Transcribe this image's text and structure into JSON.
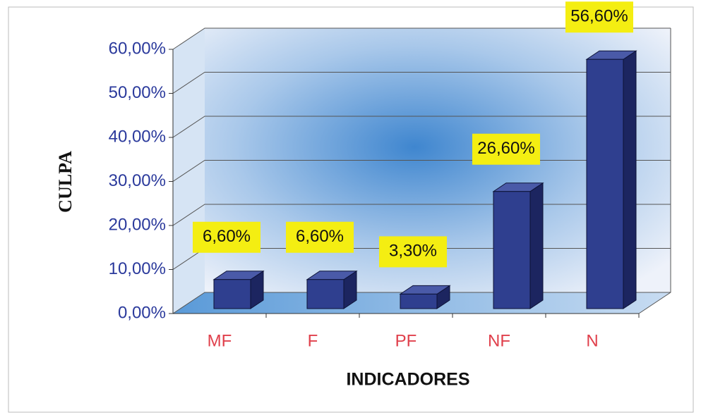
{
  "chart_data": {
    "type": "bar3d",
    "xlabel": "INDICADORES",
    "ylabel": "CULPA",
    "categories": [
      "MF",
      "F",
      "PF",
      "NF",
      "N"
    ],
    "values": [
      6.6,
      6.6,
      3.3,
      26.6,
      56.6
    ],
    "value_labels": [
      "6,60%",
      "6,60%",
      "3,30%",
      "26,60%",
      "56,60%"
    ],
    "color": "#2f3f8f",
    "ylim": [
      0,
      60
    ],
    "yticks": [
      {
        "value": 0,
        "label": "0,00%"
      },
      {
        "value": 10,
        "label": "10,00%"
      },
      {
        "value": 20,
        "label": "20,00%"
      },
      {
        "value": 30,
        "label": "30,00%"
      },
      {
        "value": 40,
        "label": "40,00%"
      },
      {
        "value": 50,
        "label": "50,00%"
      },
      {
        "value": 60,
        "label": "60,00%"
      }
    ],
    "grid": true
  }
}
